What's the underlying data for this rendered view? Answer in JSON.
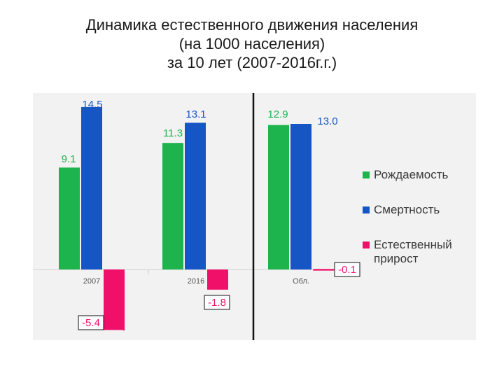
{
  "title_lines": [
    "Динамика естественного движения населения",
    "(на 1000 населения)",
    "за 10 лет (2007-2016г.г.)"
  ],
  "chart_data": {
    "type": "bar",
    "categories": [
      "2007",
      "2016",
      "Обл."
    ],
    "series": [
      {
        "name": "Рождаемость",
        "color": "#1db34d",
        "values": [
          9.1,
          11.3,
          12.9
        ],
        "labels": [
          "9.1",
          "11.3",
          "12.9"
        ]
      },
      {
        "name": "Смертность",
        "color": "#1656c4",
        "values": [
          14.5,
          13.1,
          13.0
        ],
        "labels": [
          "14.5",
          "13.1",
          "13.0"
        ]
      },
      {
        "name": "Естественный прирост",
        "color": "#f0106a",
        "values": [
          -5.4,
          -1.8,
          -0.1
        ],
        "labels": [
          "-5.4",
          "-1.8",
          "-0.1"
        ]
      }
    ],
    "ylim": [
      -6,
      16
    ],
    "legend_position": "right",
    "grid": false
  }
}
